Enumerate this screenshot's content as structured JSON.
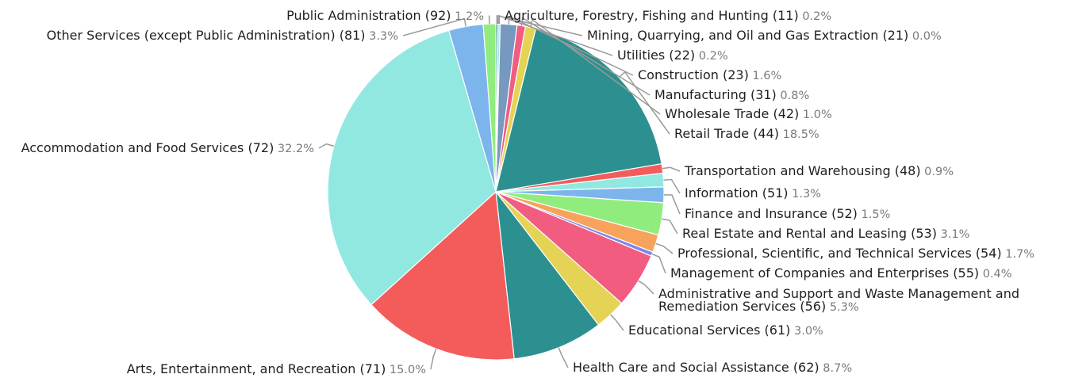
{
  "chart_data": {
    "type": "pie",
    "series": [
      {
        "name": "Agriculture, Forestry, Fishing and Hunting (11)",
        "pct": "0.2%",
        "value": 0.2,
        "color": "#2b908f"
      },
      {
        "name": "Mining, Quarrying, and Oil and Gas Extraction (21)",
        "pct": "0.0%",
        "value": 0.02,
        "color": "#f45b5b"
      },
      {
        "name": "Utilities (22)",
        "pct": "0.2%",
        "value": 0.2,
        "color": "#91e8e1"
      },
      {
        "name": "Construction (23)",
        "pct": "1.6%",
        "value": 1.6,
        "color": "#7798bf"
      },
      {
        "name": "Manufacturing (31)",
        "pct": "0.8%",
        "value": 0.8,
        "color": "#f15c80"
      },
      {
        "name": "Wholesale Trade (42)",
        "pct": "1.0%",
        "value": 1.0,
        "color": "#e4d354"
      },
      {
        "name": "Retail Trade (44)",
        "pct": "18.5%",
        "value": 18.5,
        "color": "#2b908f"
      },
      {
        "name": "Transportation and Warehousing (48)",
        "pct": "0.9%",
        "value": 0.9,
        "color": "#f45b5b"
      },
      {
        "name": "Information (51)",
        "pct": "1.3%",
        "value": 1.3,
        "color": "#91e8e1"
      },
      {
        "name": "Finance and Insurance (52)",
        "pct": "1.5%",
        "value": 1.5,
        "color": "#7cb5ec"
      },
      {
        "name": "Real Estate and Rental and Leasing (53)",
        "pct": "3.1%",
        "value": 3.1,
        "color": "#90ed7d"
      },
      {
        "name": "Professional, Scientific, and Technical Services (54)",
        "pct": "1.7%",
        "value": 1.7,
        "color": "#f7a35c"
      },
      {
        "name": "Management of Companies and Enterprises (55)",
        "pct": "0.4%",
        "value": 0.4,
        "color": "#8085e9"
      },
      {
        "name": "Administrative and Support and Waste Management and Remediation Services (56)",
        "pct": "5.3%",
        "value": 5.3,
        "color": "#f15c80"
      },
      {
        "name": "Educational Services (61)",
        "pct": "3.0%",
        "value": 3.0,
        "color": "#e4d354"
      },
      {
        "name": "Health Care and Social Assistance (62)",
        "pct": "8.7%",
        "value": 8.7,
        "color": "#2b908f"
      },
      {
        "name": "Arts, Entertainment, and Recreation (71)",
        "pct": "15.0%",
        "value": 15.0,
        "color": "#f45b5b"
      },
      {
        "name": "Accommodation and Food Services (72)",
        "pct": "32.2%",
        "value": 32.2,
        "color": "#91e8e1"
      },
      {
        "name": "Other Services (except Public Administration) (81)",
        "pct": "3.3%",
        "value": 3.3,
        "color": "#7cb5ec"
      },
      {
        "name": "Public Administration (92)",
        "pct": "1.2%",
        "value": 1.2,
        "color": "#90ed7d"
      }
    ]
  }
}
